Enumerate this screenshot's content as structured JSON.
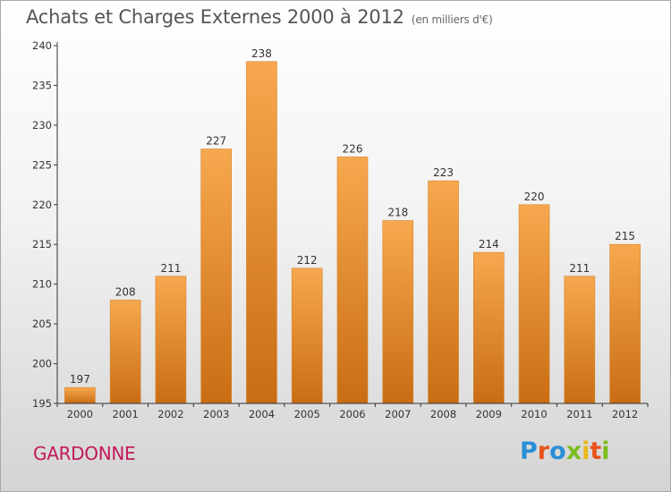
{
  "header": {
    "title": "Achats et Charges Externes 2000 à 2012",
    "unit": "(en milliers d'€)"
  },
  "footer": {
    "place": "GARDONNE",
    "brand": "Proxiti"
  },
  "colors": {
    "bar_top": "#f7a84e",
    "bar_bottom": "#c96d14",
    "place": "#c2185b",
    "brand_letters": [
      "#2a8fd6",
      "#e8541c",
      "#2a8fd6",
      "#7bbd1e",
      "#e8b81c",
      "#e8541c",
      "#7bbd1e"
    ]
  },
  "chart_data": {
    "type": "bar",
    "title": "Achats et Charges Externes 2000 à 2012",
    "subtitle": "(en milliers d'€)",
    "xlabel": "",
    "ylabel": "",
    "categories": [
      "2000",
      "2001",
      "2002",
      "2003",
      "2004",
      "2005",
      "2006",
      "2007",
      "2008",
      "2009",
      "2010",
      "2011",
      "2012"
    ],
    "values": [
      197,
      208,
      211,
      227,
      238,
      212,
      226,
      218,
      223,
      214,
      220,
      211,
      215
    ],
    "ylim": [
      195,
      240
    ],
    "yticks": [
      195,
      200,
      205,
      210,
      215,
      220,
      225,
      230,
      235,
      240
    ],
    "grid": false,
    "legend": "none"
  }
}
